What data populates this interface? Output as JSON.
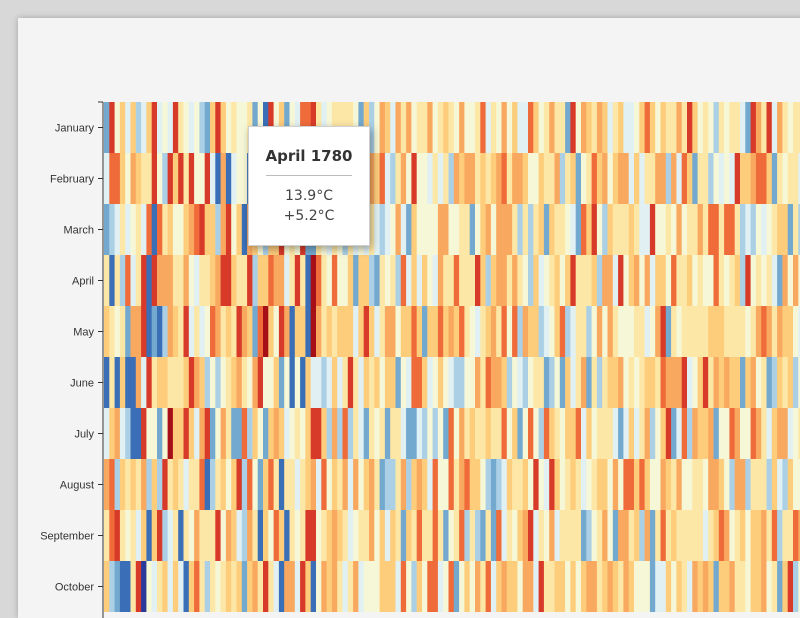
{
  "chart_data": {
    "type": "heatmap",
    "title": "",
    "xlabel": "",
    "ylabel": "",
    "rows": [
      "January",
      "February",
      "March",
      "April",
      "May",
      "June",
      "July",
      "August",
      "September",
      "October"
    ],
    "visible_columns": 140,
    "color_scale": {
      "cold_to_hot": [
        "#2b3a9a",
        "#3a6fb7",
        "#74a9cf",
        "#abd0e6",
        "#e0f0f3",
        "#f6f7d6",
        "#fde7a6",
        "#fdcd7c",
        "#f9a95f",
        "#ef6b3a",
        "#d83a29",
        "#a50f15"
      ]
    },
    "highlight": {
      "label": "April 1780",
      "temperature": "13.9°C",
      "anomaly": "+5.2°C"
    }
  },
  "tooltip": {
    "title": "April 1780",
    "temperature": "13.9°C",
    "anomaly": "+5.2°C"
  }
}
